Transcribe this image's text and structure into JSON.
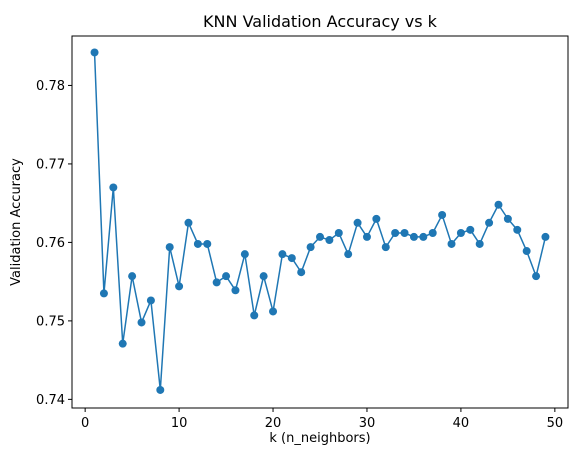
{
  "chart_data": {
    "type": "line",
    "title": "KNN Validation Accuracy vs k",
    "xlabel": "k (n_neighbors)",
    "ylabel": "Validation Accuracy",
    "xlim": [
      -1.4,
      51.4
    ],
    "ylim": [
      0.7389,
      0.7863
    ],
    "xticks": [
      0,
      10,
      20,
      30,
      40,
      50
    ],
    "xtick_labels": [
      "0",
      "10",
      "20",
      "30",
      "40",
      "50"
    ],
    "yticks": [
      0.74,
      0.75,
      0.76,
      0.77,
      0.78
    ],
    "ytick_labels": [
      "0.74",
      "0.75",
      "0.76",
      "0.77",
      "0.78"
    ],
    "grid": false,
    "markers": true,
    "series": [
      {
        "color": "#1f77b4",
        "x": [
          1,
          2,
          3,
          4,
          5,
          6,
          7,
          8,
          9,
          10,
          11,
          12,
          13,
          14,
          15,
          16,
          17,
          18,
          19,
          20,
          21,
          22,
          23,
          24,
          25,
          26,
          27,
          28,
          29,
          30,
          31,
          32,
          33,
          34,
          35,
          36,
          37,
          38,
          39,
          40,
          41,
          42,
          43,
          44,
          45,
          46,
          47,
          48,
          49
        ],
        "y": [
          0.7842,
          0.7535,
          0.767,
          0.7471,
          0.7557,
          0.7498,
          0.7526,
          0.7412,
          0.7594,
          0.7544,
          0.7625,
          0.7598,
          0.7598,
          0.7549,
          0.7557,
          0.7539,
          0.7585,
          0.7507,
          0.7557,
          0.7512,
          0.7585,
          0.758,
          0.7562,
          0.7594,
          0.7607,
          0.7603,
          0.7612,
          0.7585,
          0.7625,
          0.7607,
          0.763,
          0.7594,
          0.7612,
          0.7612,
          0.7607,
          0.7607,
          0.7612,
          0.7635,
          0.7598,
          0.7612,
          0.7616,
          0.7598,
          0.7625,
          0.7648,
          0.763,
          0.7616,
          0.7589,
          0.7557,
          0.7607
        ]
      }
    ]
  }
}
